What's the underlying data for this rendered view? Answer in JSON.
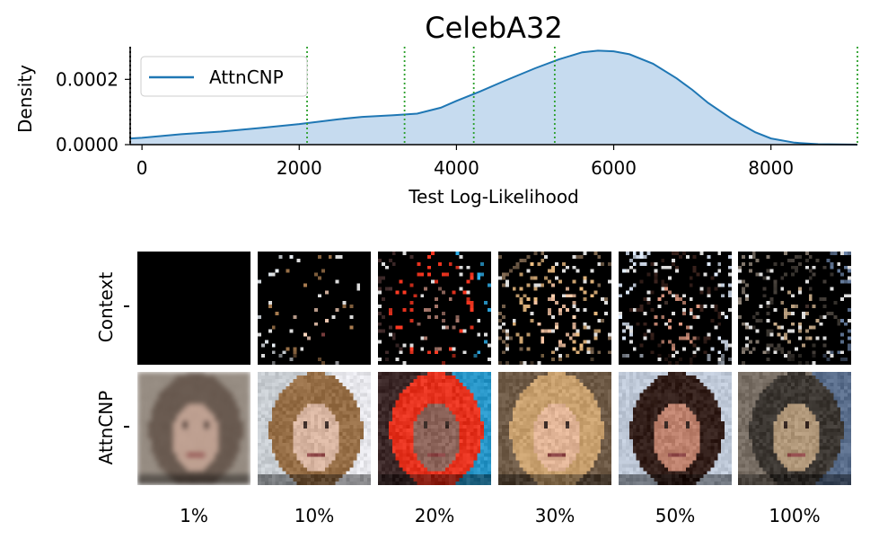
{
  "chart_data": [
    {
      "type": "area",
      "title": "CelebA32",
      "xlabel": "Test Log-Likelihood",
      "ylabel": "Density",
      "xlim": [
        -150,
        9100
      ],
      "ylim": [
        0,
        0.0003
      ],
      "xticks": [
        0,
        2000,
        4000,
        6000,
        8000
      ],
      "xtick_labels": [
        "0",
        "2000",
        "4000",
        "6000",
        "8000"
      ],
      "yticks": [
        0,
        0.0002
      ],
      "ytick_labels": [
        "0.0000",
        "0.0002"
      ],
      "grid": false,
      "legend_position": "upper-left",
      "series": [
        {
          "name": "AttnCNP",
          "color": "#1f77b4",
          "fill_color": "#c6dbef",
          "x": [
            -150,
            0,
            500,
            1000,
            1500,
            2000,
            2500,
            2800,
            3200,
            3500,
            3800,
            4000,
            4300,
            4600,
            5000,
            5300,
            5600,
            5800,
            6000,
            6200,
            6500,
            6800,
            7000,
            7200,
            7500,
            7800,
            8000,
            8300,
            8600,
            9000,
            9100
          ],
          "y": [
            1.9e-05,
            2.1e-05,
            3.2e-05,
            4e-05,
            5.1e-05,
            6.3e-05,
            7.8e-05,
            8.5e-05,
            9e-05,
            9.5e-05,
            0.000113,
            0.000134,
            0.000163,
            0.000194,
            0.000234,
            0.000261,
            0.000283,
            0.000288,
            0.000286,
            0.000277,
            0.000248,
            0.000203,
            0.000168,
            0.000128,
            7.9e-05,
            3.8e-05,
            1.9e-05,
            6e-06,
            1.5e-06,
            2e-07,
            1e-07
          ]
        }
      ],
      "vlines": [
        {
          "x": -150,
          "color": "#000000",
          "style": "dotted"
        },
        {
          "x": 2100,
          "color": "#2ca02c",
          "style": "dotted"
        },
        {
          "x": 3340,
          "color": "#2ca02c",
          "style": "dotted"
        },
        {
          "x": 4220,
          "color": "#2ca02c",
          "style": "dotted"
        },
        {
          "x": 5250,
          "color": "#2ca02c",
          "style": "dotted"
        },
        {
          "x": 9100,
          "color": "#2ca02c",
          "style": "dotted"
        }
      ]
    },
    {
      "type": "image_grid",
      "rows": [
        "Context",
        "AttnCNP"
      ],
      "columns": [
        "1%",
        "10%",
        "20%",
        "30%",
        "50%",
        "100%"
      ],
      "context_fractions": [
        0.01,
        0.1,
        0.2,
        0.3,
        0.5,
        1.0
      ]
    }
  ]
}
